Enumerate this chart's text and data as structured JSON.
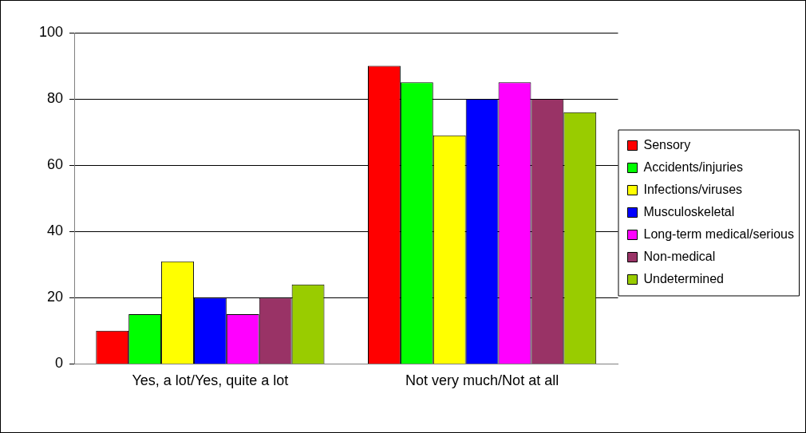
{
  "chart_data": {
    "type": "bar",
    "categories": [
      "Yes, a lot/Yes, quite a lot",
      "Not very much/Not at all"
    ],
    "series": [
      {
        "name": "Sensory",
        "color": "#ff0000",
        "values": [
          10,
          90
        ]
      },
      {
        "name": "Accidents/injuries",
        "color": "#00ff00",
        "values": [
          15,
          85
        ]
      },
      {
        "name": "Infections/viruses",
        "color": "#ffff00",
        "values": [
          31,
          69
        ]
      },
      {
        "name": "Musculoskeletal",
        "color": "#0000ff",
        "values": [
          20,
          80
        ]
      },
      {
        "name": "Long-term medical/serious",
        "color": "#ff00ff",
        "values": [
          15,
          85
        ]
      },
      {
        "name": "Non-medical",
        "color": "#993366",
        "values": [
          20,
          80
        ]
      },
      {
        "name": "Undetermined",
        "color": "#99cc00",
        "values": [
          24,
          76
        ]
      }
    ],
    "ylim": [
      0,
      100
    ],
    "yticks": [
      0,
      20,
      40,
      60,
      80,
      100
    ],
    "grid": "y",
    "legend": "right"
  }
}
